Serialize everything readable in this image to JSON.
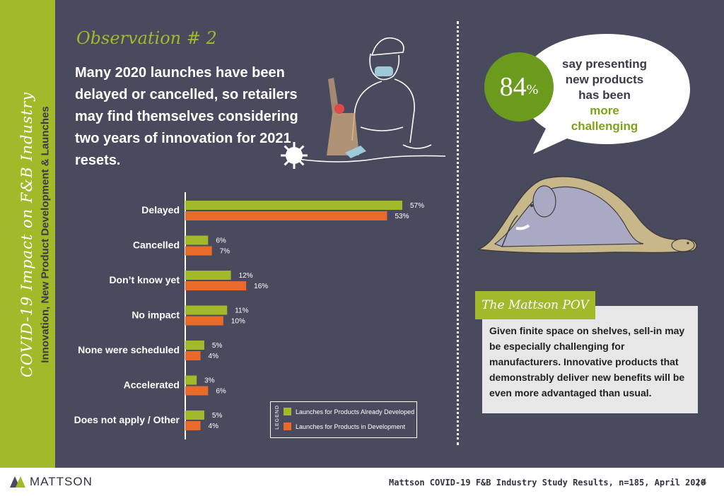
{
  "sidebar": {
    "title": "COVID-19 Impact on F&B Industry",
    "subtitle": "Innovation, New Product Development & Launches"
  },
  "observation": {
    "title": "Observation # 2",
    "text": "Many 2020 launches have been delayed or cancelled, so retailers may find themselves considering two years of innovation for 2021 resets."
  },
  "chart_data": {
    "type": "bar",
    "orientation": "horizontal",
    "categories": [
      "Delayed",
      "Cancelled",
      "Don’t know yet",
      "No impact",
      "None were scheduled",
      "Accelerated",
      "Does not apply / Other"
    ],
    "series": [
      {
        "name": "Launches for Products Already Developed",
        "color": "#a2b92a",
        "values": [
          57,
          6,
          12,
          11,
          5,
          3,
          5
        ]
      },
      {
        "name": "Launches for Products in Development",
        "color": "#e86b2c",
        "values": [
          53,
          7,
          16,
          10,
          4,
          6,
          4
        ]
      }
    ],
    "value_suffix": "%",
    "xlim": [
      0,
      60
    ],
    "legend_title": "LEGEND",
    "legend_position": "bottom-right",
    "grid": false
  },
  "stat": {
    "number": "84",
    "unit": "%",
    "text": "say presenting new products has been",
    "emphasis": "more challenging"
  },
  "pov": {
    "tag": "The Mattson POV",
    "text": "Given finite space on shelves, sell-in may be especially challenging for manufacturers. Innovative products that demonstrably deliver new benefits will be even more advantaged than usual."
  },
  "footer": {
    "logo": "MATTSON",
    "study": "Mattson COVID-19 F&B Industry Study Results, n=185, April 2020",
    "page": "| 4"
  },
  "colors": {
    "background": "#4a4a5e",
    "accent_green": "#a2b92a",
    "accent_orange": "#e86b2c",
    "stat_green": "#6b9b1d"
  }
}
